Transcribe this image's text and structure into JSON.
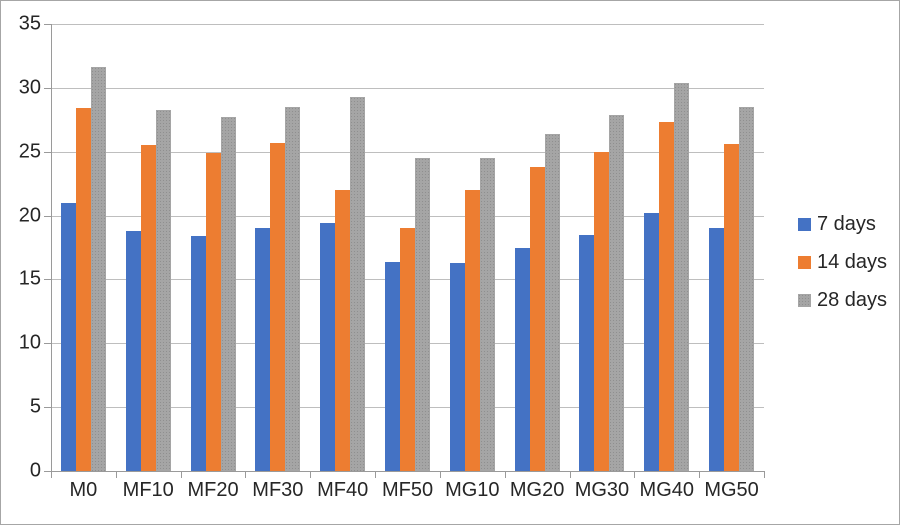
{
  "chart_data": {
    "type": "bar",
    "title": "",
    "xlabel": "",
    "ylabel": "",
    "categories": [
      "M0",
      "MF10",
      "MF20",
      "MF30",
      "MF40",
      "MF50",
      "MG10",
      "MG20",
      "MG30",
      "MG40",
      "MG50"
    ],
    "series": [
      {
        "name": "7 days",
        "color": "#4472C4",
        "pattern": "solid",
        "values": [
          21.0,
          18.8,
          18.4,
          19.0,
          19.4,
          16.4,
          16.3,
          17.5,
          18.5,
          20.2,
          19.0
        ]
      },
      {
        "name": "14 days",
        "color": "#ED7D31",
        "pattern": "solid",
        "values": [
          28.4,
          25.5,
          24.9,
          25.7,
          22.0,
          19.0,
          22.0,
          23.8,
          25.0,
          27.3,
          25.6
        ]
      },
      {
        "name": "28 days",
        "color": "#A5A5A5",
        "pattern": "dotted",
        "values": [
          31.6,
          28.3,
          27.7,
          28.5,
          29.3,
          24.5,
          24.5,
          26.4,
          27.9,
          30.4,
          28.5
        ]
      }
    ],
    "ylim": [
      0,
      35
    ],
    "ytick_step": 5,
    "grid": true,
    "legend_position": "right-middle"
  },
  "colors": {
    "gridline": "#bebebe",
    "axis": "#9a9a9a",
    "label_text": "#262626",
    "background": "#ffffff",
    "border": "#a6a6a6"
  }
}
